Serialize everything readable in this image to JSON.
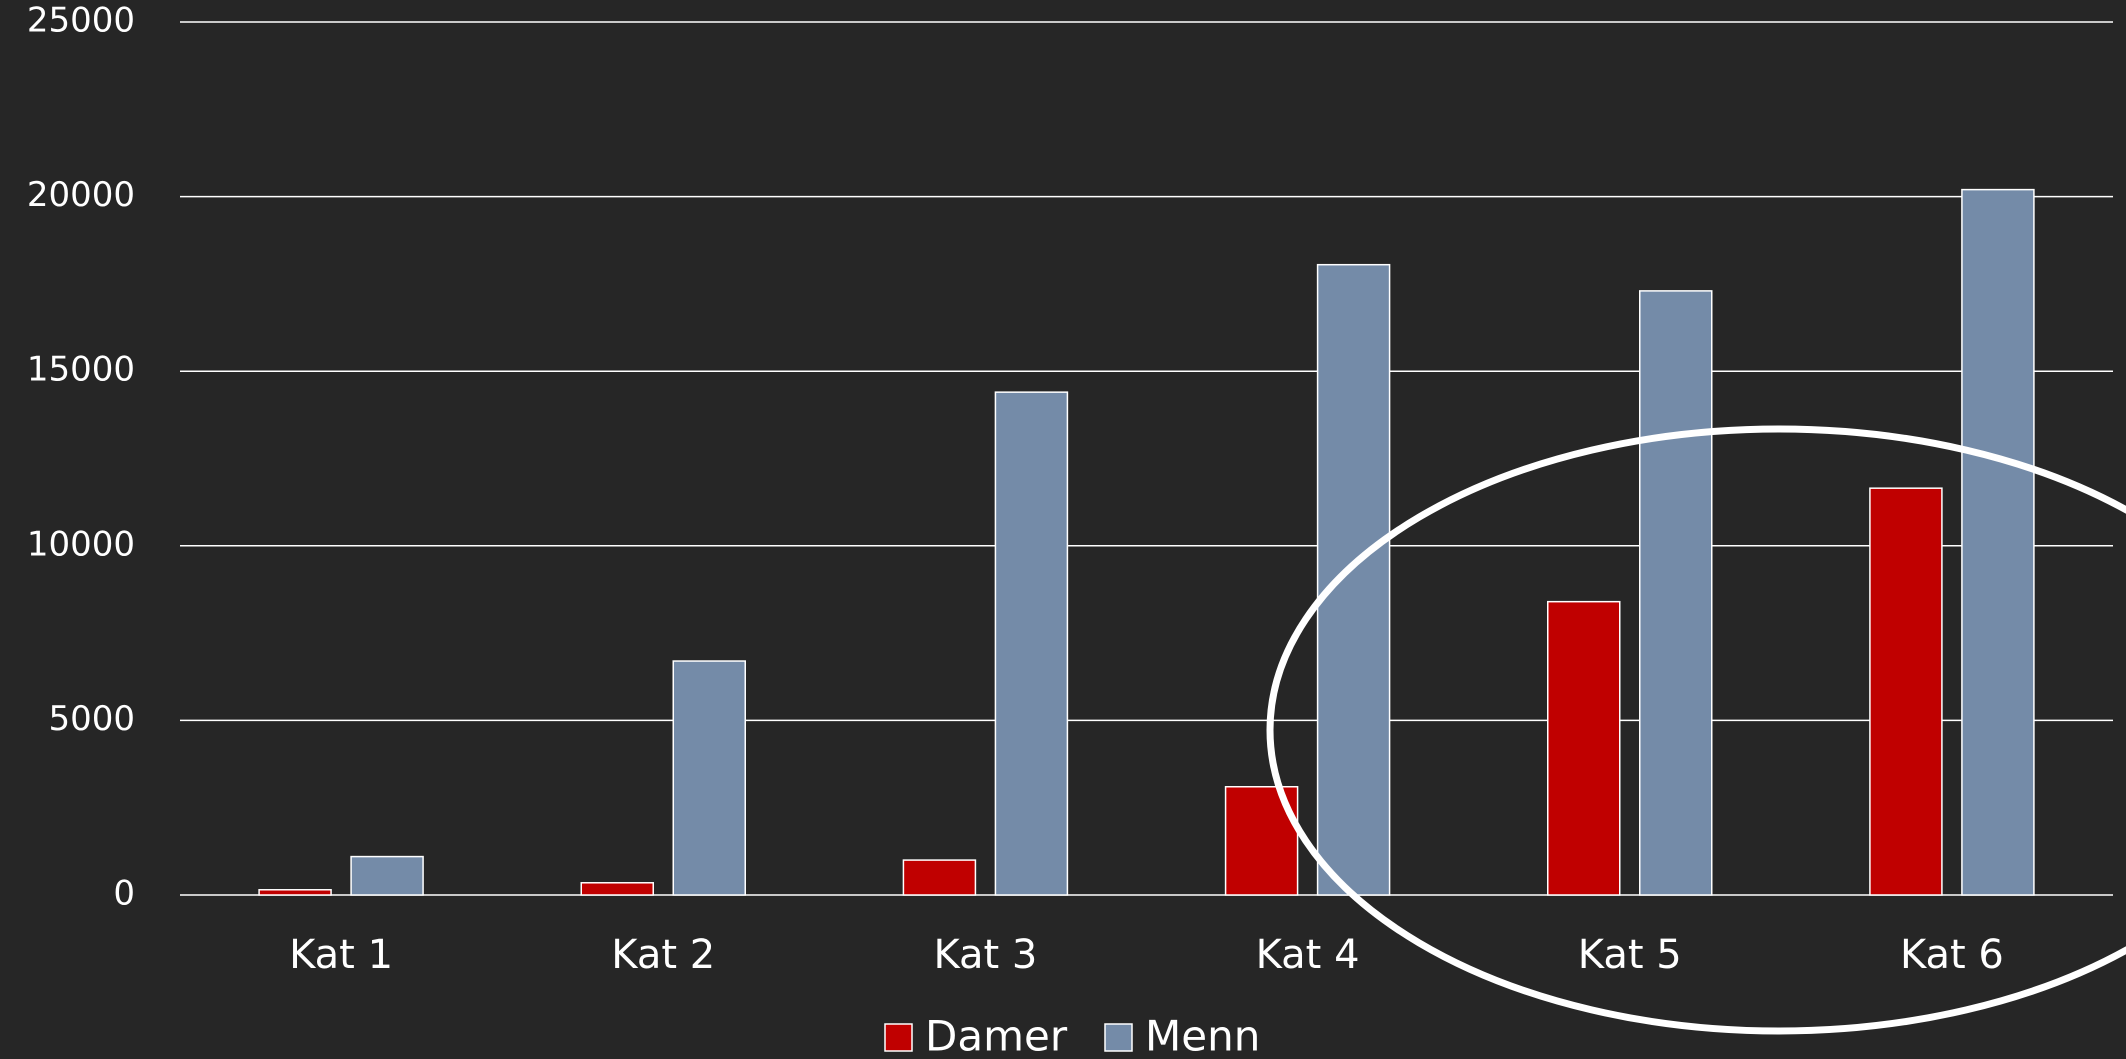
{
  "chart_data": {
    "type": "bar",
    "categories": [
      "Kat 1",
      "Kat 2",
      "Kat 3",
      "Kat 4",
      "Kat 5",
      "Kat 6"
    ],
    "series": [
      {
        "name": "Damer",
        "color": "#c00000",
        "values": [
          150,
          350,
          1000,
          3100,
          8400,
          11650
        ]
      },
      {
        "name": "Menn",
        "color": "#748ba8",
        "values": [
          1100,
          6700,
          14400,
          18050,
          17300,
          20200
        ]
      }
    ],
    "ylim": [
      0,
      25000
    ],
    "yticks": [
      0,
      5000,
      10000,
      15000,
      20000,
      25000
    ],
    "grid": true,
    "legend": "bottom"
  }
}
